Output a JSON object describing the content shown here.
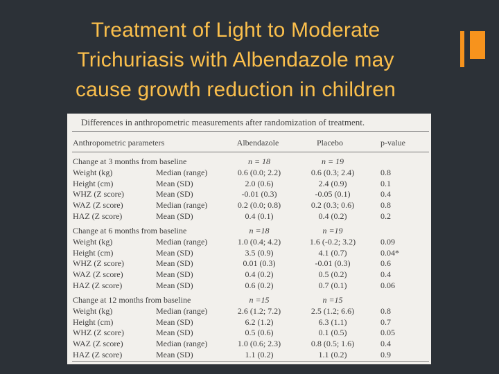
{
  "slide": {
    "title_lines": [
      "Treatment of Light to Moderate",
      "Trichuriasis with Albendazole may",
      "cause growth reduction in children"
    ]
  },
  "table": {
    "caption": "Differences in anthropometric measurements after randomization of treatment.",
    "headers": [
      "Anthropometric parameters",
      "Albendazole",
      "Placebo",
      "p-value"
    ],
    "sections": [
      {
        "label": "Change at 3 months from baseline",
        "n_albendazole": "n = 18",
        "n_placebo": "n = 19",
        "rows": [
          {
            "param": "Weight (kg)",
            "stat": "Median (range)",
            "alb": "0.6 (0.0; 2.2)",
            "plc": "0.6 (0.3; 2.4)",
            "p": "0.8"
          },
          {
            "param": "Height (cm)",
            "stat": "Mean (SD)",
            "alb": "2.0 (0.6)",
            "plc": "2.4 (0.9)",
            "p": "0.1"
          },
          {
            "param": "WHZ (Z score)",
            "stat": "Mean (SD)",
            "alb": "-0.01 (0.3)",
            "plc": "-0.05 (0.1)",
            "p": "0.4"
          },
          {
            "param": "WAZ (Z score)",
            "stat": "Median (range)",
            "alb": "0.2 (0.0; 0.8)",
            "plc": "0.2 (0.3; 0.6)",
            "p": "0.8"
          },
          {
            "param": "HAZ (Z score)",
            "stat": "Mean (SD)",
            "alb": "0.4 (0.1)",
            "plc": "0.4 (0.2)",
            "p": "0.2"
          }
        ]
      },
      {
        "label": "Change at 6 months from baseline",
        "n_albendazole": "n =18",
        "n_placebo": "n =19",
        "rows": [
          {
            "param": "Weight (kg)",
            "stat": "Median (range)",
            "alb": "1.0 (0.4; 4.2)",
            "plc": "1.6 (-0.2; 3.2)",
            "p": "0.09"
          },
          {
            "param": "Height (cm)",
            "stat": "Mean (SD)",
            "alb": "3.5 (0.9)",
            "plc": "4.1 (0.7)",
            "p": "0.04*"
          },
          {
            "param": "WHZ (Z score)",
            "stat": "Mean (SD)",
            "alb": "0.01 (0.3)",
            "plc": "-0.01 (0.3)",
            "p": "0.6"
          },
          {
            "param": "WAZ (Z score)",
            "stat": "Mean (SD)",
            "alb": "0.4 (0.2)",
            "plc": "0.5 (0.2)",
            "p": "0.4"
          },
          {
            "param": "HAZ (Z score)",
            "stat": "Mean (SD)",
            "alb": "0.6 (0.2)",
            "plc": "0.7 (0.1)",
            "p": "0.06"
          }
        ]
      },
      {
        "label": "Change at 12 months from baseline",
        "n_albendazole": "n =15",
        "n_placebo": "n =15",
        "rows": [
          {
            "param": "Weight (kg)",
            "stat": "Median (range)",
            "alb": "2.6 (1.2; 7.2)",
            "plc": "2.5 (1.2; 6.6)",
            "p": "0.8"
          },
          {
            "param": "Height (cm)",
            "stat": "Mean (SD)",
            "alb": "6.2 (1.2)",
            "plc": "6.3 (1.1)",
            "p": "0.7"
          },
          {
            "param": "WHZ (Z score)",
            "stat": "Mean (SD)",
            "alb": "0.5 (0.6)",
            "plc": "0.1 (0.5)",
            "p": "0.05"
          },
          {
            "param": "WAZ (Z score)",
            "stat": "Median (range)",
            "alb": "1.0 (0.6; 2.3)",
            "plc": "0.8 (0.5; 1.6)",
            "p": "0.4"
          },
          {
            "param": "HAZ (Z score)",
            "stat": "Mean (SD)",
            "alb": "1.1 (0.2)",
            "plc": "1.1 (0.2)",
            "p": "0.9"
          }
        ]
      }
    ]
  },
  "colors": {
    "background": "#2c3137",
    "title": "#fbbf4c",
    "accent": "#f7931d",
    "table_bg": "#f2f0ec"
  }
}
